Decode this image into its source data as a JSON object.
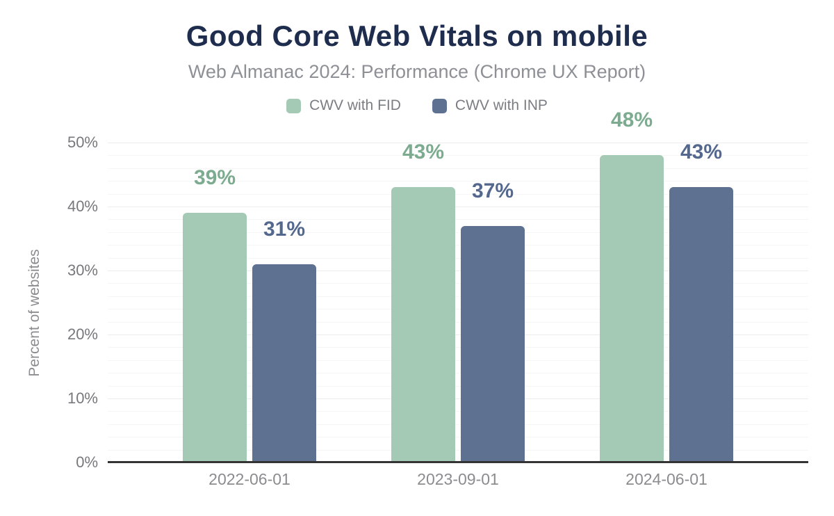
{
  "chart_data": {
    "type": "bar",
    "title": "Good Core Web Vitals on mobile",
    "subtitle": "Web Almanac 2024: Performance (Chrome UX Report)",
    "xlabel": "",
    "ylabel": "Percent of websites",
    "categories": [
      "2022-06-01",
      "2023-09-01",
      "2024-06-01"
    ],
    "series": [
      {
        "name": "CWV with FID",
        "values": [
          39,
          43,
          48
        ],
        "unit": "%",
        "color": "#a4c9b5",
        "label_color": "#7dab90"
      },
      {
        "name": "CWV with INP",
        "values": [
          31,
          37,
          43
        ],
        "unit": "%",
        "color": "#5e7190",
        "label_color": "#54688e"
      }
    ],
    "data_labels": [
      [
        "39%",
        "43%",
        "48%"
      ],
      [
        "31%",
        "37%",
        "43%"
      ]
    ],
    "ylim": [
      0,
      50
    ],
    "yticks": [
      0,
      10,
      20,
      30,
      40,
      50
    ],
    "ytick_labels": [
      "0%",
      "10%",
      "20%",
      "30%",
      "40%",
      "50%"
    ],
    "grid": {
      "show": true,
      "minor_step_pct": 2,
      "major_step_pct": 10
    },
    "legend_position": "top",
    "colors": {
      "title": "#1e2c4d",
      "subtitle": "#8d9095",
      "axis_text": "#76787c",
      "baseline": "#333333"
    }
  }
}
